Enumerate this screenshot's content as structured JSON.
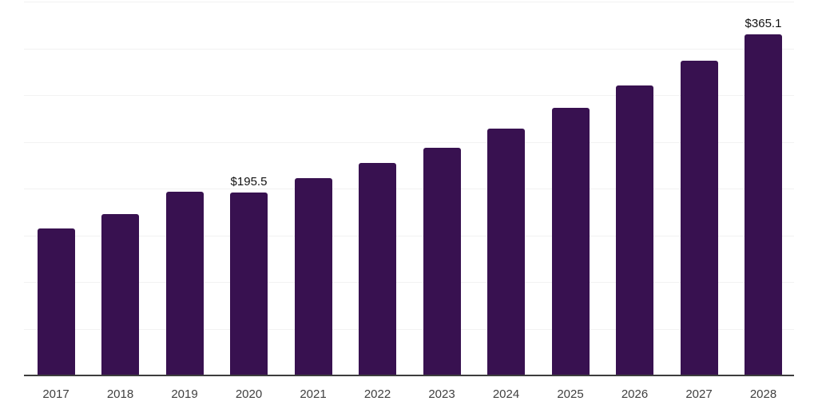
{
  "chart_data": {
    "type": "bar",
    "title": "",
    "xlabel": "",
    "ylabel": "",
    "categories": [
      "2017",
      "2018",
      "2019",
      "2020",
      "2021",
      "2022",
      "2023",
      "2024",
      "2025",
      "2026",
      "2027",
      "2028"
    ],
    "values": [
      157,
      173,
      197,
      195.5,
      211,
      227,
      244,
      264,
      286,
      310,
      337,
      365.1
    ],
    "currency_prefix": "$",
    "data_labels": [
      {
        "category": "2020",
        "text": "$195.5"
      },
      {
        "category": "2028",
        "text": "$365.1"
      }
    ],
    "ylim": [
      0,
      400
    ],
    "gridline_step": 50,
    "grid": "horizontal",
    "legend": "none",
    "colors": {
      "bar": "#381150",
      "gridline": "#f2f2f2",
      "axis_line": "#3d3d3d",
      "tick_label": "#404040",
      "data_label": "#111111",
      "background": "#ffffff"
    }
  }
}
